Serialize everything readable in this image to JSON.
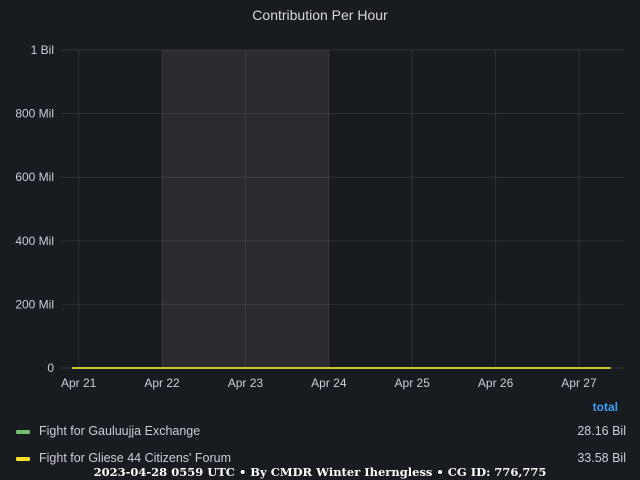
{
  "chart_data": {
    "type": "line",
    "title": "Contribution Per Hour",
    "y_ticks": [
      {
        "value": 0,
        "label": "0"
      },
      {
        "value": 200000000,
        "label": "200 Mil"
      },
      {
        "value": 400000000,
        "label": "400 Mil"
      },
      {
        "value": 600000000,
        "label": "600 Mil"
      },
      {
        "value": 800000000,
        "label": "800 Mil"
      },
      {
        "value": 1000000000,
        "label": "1 Bil"
      }
    ],
    "ylim": [
      0,
      1000000000
    ],
    "xlim": [
      "Apr 20 19:00",
      "Apr 27 10:00"
    ],
    "x_ticks": [
      {
        "day": 21,
        "label": "Apr 21"
      },
      {
        "day": 22,
        "label": "Apr 22"
      },
      {
        "day": 23,
        "label": "Apr 23"
      },
      {
        "day": 24,
        "label": "Apr 24"
      },
      {
        "day": 25,
        "label": "Apr 25"
      },
      {
        "day": 26,
        "label": "Apr 26"
      },
      {
        "day": 27,
        "label": "Apr 27"
      }
    ],
    "highlight_region": [
      "Apr 22 00:00",
      "Apr 24 00:00"
    ],
    "grid": true,
    "legend_placement": "bottom",
    "legend_header": "total",
    "x_start_day": 20.8,
    "x_end_day": 27.42,
    "series": [
      {
        "name": "Fight for Gauluujja Exchange",
        "total": "28.16 Bil",
        "color": "#73bf69",
        "values": [
          0,
          0,
          20,
          40,
          55,
          70,
          50,
          110,
          160,
          60,
          130,
          85,
          270,
          40,
          120,
          100,
          80,
          65,
          100,
          40,
          120,
          85,
          40,
          20,
          80,
          60,
          80,
          55,
          80,
          240,
          290,
          140,
          120,
          180,
          155,
          200,
          250,
          180,
          300,
          250,
          190,
          140,
          100,
          170,
          150,
          100,
          90,
          80,
          90,
          220,
          170,
          120,
          75,
          60,
          80,
          110,
          90,
          120,
          80,
          100,
          130,
          160,
          210,
          250,
          280,
          250,
          170,
          150,
          160,
          140,
          160,
          260,
          200,
          250,
          300,
          340,
          330,
          280,
          300,
          200,
          180,
          230,
          150,
          130,
          120,
          140,
          100,
          120,
          130,
          230,
          280,
          130,
          110,
          150,
          170,
          190,
          140,
          90,
          80,
          120,
          200,
          230,
          200,
          160,
          180,
          240,
          280,
          420,
          400,
          560,
          200,
          120,
          170,
          240,
          180,
          100,
          140,
          80,
          60,
          90,
          120,
          150,
          100,
          60,
          70,
          180,
          200,
          280,
          140,
          100,
          80,
          170,
          250,
          160,
          120,
          140,
          180,
          250,
          280,
          160,
          180,
          150,
          160,
          140,
          200,
          120,
          150,
          170,
          110,
          70,
          120,
          140,
          90,
          140,
          110,
          100,
          60,
          80,
          40,
          100,
          70,
          130,
          90,
          60,
          110,
          40,
          60,
          180,
          910,
          180,
          100,
          160,
          140,
          80,
          120,
          200,
          350,
          260,
          150,
          200,
          280,
          140,
          100,
          80,
          140,
          220,
          120,
          200,
          160,
          100,
          60,
          90,
          70,
          110,
          80,
          60,
          100,
          120,
          200,
          180,
          240,
          470,
          380,
          300,
          240,
          140,
          80,
          110,
          200,
          150,
          110,
          130,
          210,
          100,
          150,
          200,
          300,
          180,
          140,
          150,
          100,
          60,
          40,
          20,
          0
        ]
      },
      {
        "name": "Fight for Gliese 44 Citizens' Forum",
        "total": "33.58 Bil",
        "color": "#fade2a",
        "values": [
          0,
          0,
          20,
          40,
          60,
          80,
          70,
          215,
          100,
          165,
          160,
          95,
          100,
          60,
          160,
          130,
          75,
          95,
          85,
          70,
          80,
          65,
          85,
          120,
          100,
          70,
          50,
          20,
          90,
          30,
          90,
          110,
          120,
          170,
          130,
          100,
          280,
          120,
          300,
          370,
          160,
          110,
          95,
          150,
          225,
          140,
          70,
          100,
          80,
          120,
          90,
          160,
          175,
          200,
          280,
          430,
          240,
          200,
          190,
          120,
          330,
          220,
          140,
          250,
          180,
          830,
          280,
          230,
          200,
          130,
          100,
          70,
          200,
          280,
          170,
          380,
          240,
          140,
          160,
          110,
          200,
          220,
          150,
          250,
          310,
          540,
          470,
          200,
          170,
          200,
          160,
          470,
          740,
          200,
          350,
          400,
          220,
          230,
          270,
          700,
          380,
          100,
          160,
          250,
          430,
          600,
          260,
          180,
          460,
          470,
          230,
          350,
          180,
          140,
          80,
          100,
          60,
          40,
          30,
          100,
          60,
          200,
          530,
          200,
          130,
          160,
          380,
          200,
          170,
          150,
          170,
          300,
          560,
          200,
          140,
          330,
          480,
          380,
          370,
          300,
          240,
          140,
          180,
          110,
          130,
          120,
          160,
          240,
          100,
          120,
          200,
          400,
          320,
          200,
          190,
          170,
          110,
          80,
          60,
          180,
          130,
          250,
          180,
          120,
          100,
          90,
          80,
          200,
          300,
          380,
          200,
          150,
          250,
          140,
          180,
          300,
          260,
          280,
          350,
          150,
          270,
          200,
          480,
          300,
          140,
          250,
          200,
          180,
          120,
          200,
          80,
          100,
          80,
          60,
          130,
          160,
          120,
          200,
          260,
          230,
          400,
          350,
          280,
          200,
          140,
          330,
          250,
          380,
          880,
          400,
          150,
          120,
          180,
          150,
          160,
          130,
          100,
          80,
          40,
          0
        ]
      }
    ]
  },
  "footer": "2023-04-28 0559 UTC • By CMDR Winter Iherngless • CG ID: 776,775"
}
